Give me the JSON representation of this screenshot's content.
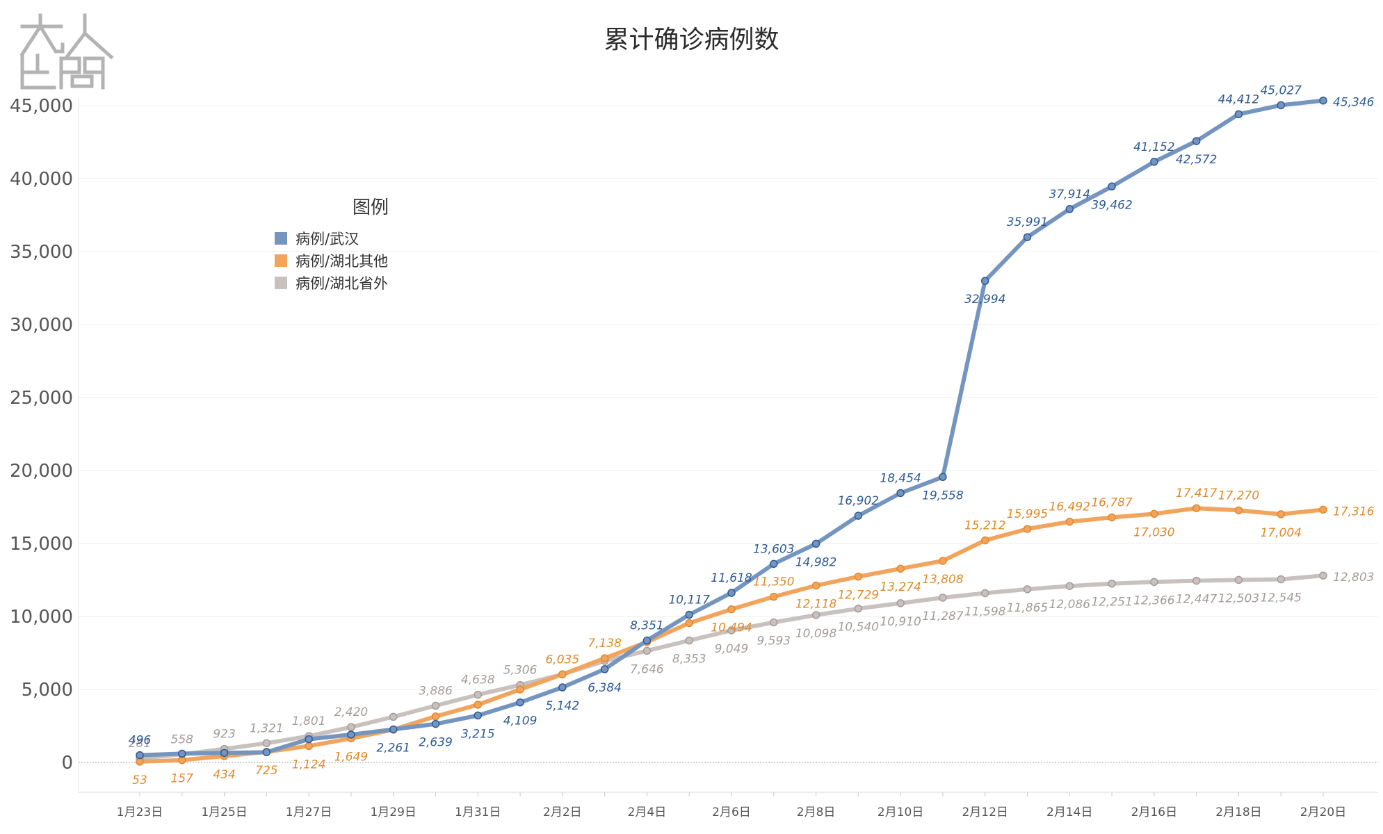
{
  "watermark": {
    "text": "九人 仕間",
    "color": "#b3b3b3"
  },
  "chart_data": {
    "type": "line",
    "title": "累计确诊病例数",
    "xlabel": "",
    "ylabel": "",
    "ylim": [
      -2000,
      47000
    ],
    "yticks": [
      0,
      5000,
      10000,
      15000,
      20000,
      25000,
      30000,
      35000,
      40000,
      45000
    ],
    "ytick_labels": [
      "0",
      "5,000",
      "10,000",
      "15,000",
      "20,000",
      "25,000",
      "30,000",
      "35,000",
      "40,000",
      "45,000"
    ],
    "grid": true,
    "legend_title": "图例",
    "legend_position": "upper-left",
    "x": [
      "1月23日",
      "1月24日",
      "1月25日",
      "1月26日",
      "1月27日",
      "1月28日",
      "1月29日",
      "1月30日",
      "1月31日",
      "2月1日",
      "2月2日",
      "2月3日",
      "2月4日",
      "2月5日",
      "2月6日",
      "2月7日",
      "2月8日",
      "2月9日",
      "2月10日",
      "2月11日",
      "2月12日",
      "2月13日",
      "2月14日",
      "2月15日",
      "2月16日",
      "2月17日",
      "2月18日",
      "2月19日",
      "2月20日"
    ],
    "xtick_labels": [
      "1月23日",
      "1月25日",
      "1月27日",
      "1月29日",
      "1月31日",
      "2月2日",
      "2月4日",
      "2月6日",
      "2月8日",
      "2月10日",
      "2月12日",
      "2月14日",
      "2月16日",
      "2月18日",
      "2月20日"
    ],
    "series": [
      {
        "name": "病例/湖北省外",
        "color": "#c9c1bd",
        "label_color": "#a49c98",
        "values": [
          281,
          558,
          923,
          1321,
          1801,
          2420,
          3125,
          3886,
          4638,
          5306,
          6035,
          6950,
          7646,
          8353,
          9049,
          9593,
          10098,
          10540,
          10910,
          11287,
          11598,
          11865,
          12086,
          12251,
          12366,
          12447,
          12503,
          12545,
          12803
        ],
        "labels": [
          "281",
          "558",
          "923",
          "1,321",
          "1,801",
          "2,420",
          null,
          "3,886",
          "4,638",
          "5,306",
          null,
          null,
          "7,646",
          "8,353",
          "9,049",
          "9,593",
          "10,098",
          "10,540",
          "10,910",
          "11,287",
          "11,598",
          "11,865",
          "12,086",
          "12,251",
          "12,366",
          "12,447",
          "12,503",
          "12,545",
          "12,803"
        ]
      },
      {
        "name": "病例/湖北其他",
        "color": "#f3a45c",
        "label_color": "#e08a29",
        "values": [
          53,
          157,
          434,
          725,
          1124,
          1649,
          2250,
          3150,
          3950,
          5000,
          6035,
          7138,
          8250,
          9550,
          10494,
          11350,
          12118,
          12729,
          13274,
          13808,
          15212,
          15995,
          16492,
          16787,
          17030,
          17417,
          17270,
          17004,
          17316
        ],
        "labels": [
          "53",
          "157",
          "434",
          "725",
          "1,124",
          "1,649",
          null,
          null,
          null,
          null,
          "6,035",
          "7,138",
          null,
          null,
          "10,494",
          "11,350",
          "12,118",
          "12,729",
          "13,274",
          "13,808",
          "15,212",
          "15,995",
          "16,492",
          "16,787",
          "17,030",
          "17,417",
          "17,270",
          "17,004",
          "17,316"
        ]
      },
      {
        "name": "病例/武汉",
        "color": "#7495bf",
        "label_color": "#2d5a97",
        "values": [
          496,
          600,
          650,
          698,
          1590,
          1905,
          2261,
          2639,
          3215,
          4109,
          5142,
          6384,
          8351,
          10117,
          11618,
          13603,
          14982,
          16902,
          18454,
          19558,
          32994,
          35991,
          37914,
          39462,
          41152,
          42572,
          44412,
          45027,
          45346
        ],
        "labels": [
          "496",
          null,
          null,
          null,
          null,
          null,
          "2,261",
          "2,639",
          "3,215",
          "4,109",
          "5,142",
          "6,384",
          "8,351",
          "10,117",
          "11,618",
          "13,603",
          "14,982",
          "16,902",
          "18,454",
          "19,558",
          "32,994",
          "35,991",
          "37,914",
          "39,462",
          "41,152",
          "42,572",
          "44,412",
          "45,027",
          "45,346"
        ]
      }
    ]
  }
}
